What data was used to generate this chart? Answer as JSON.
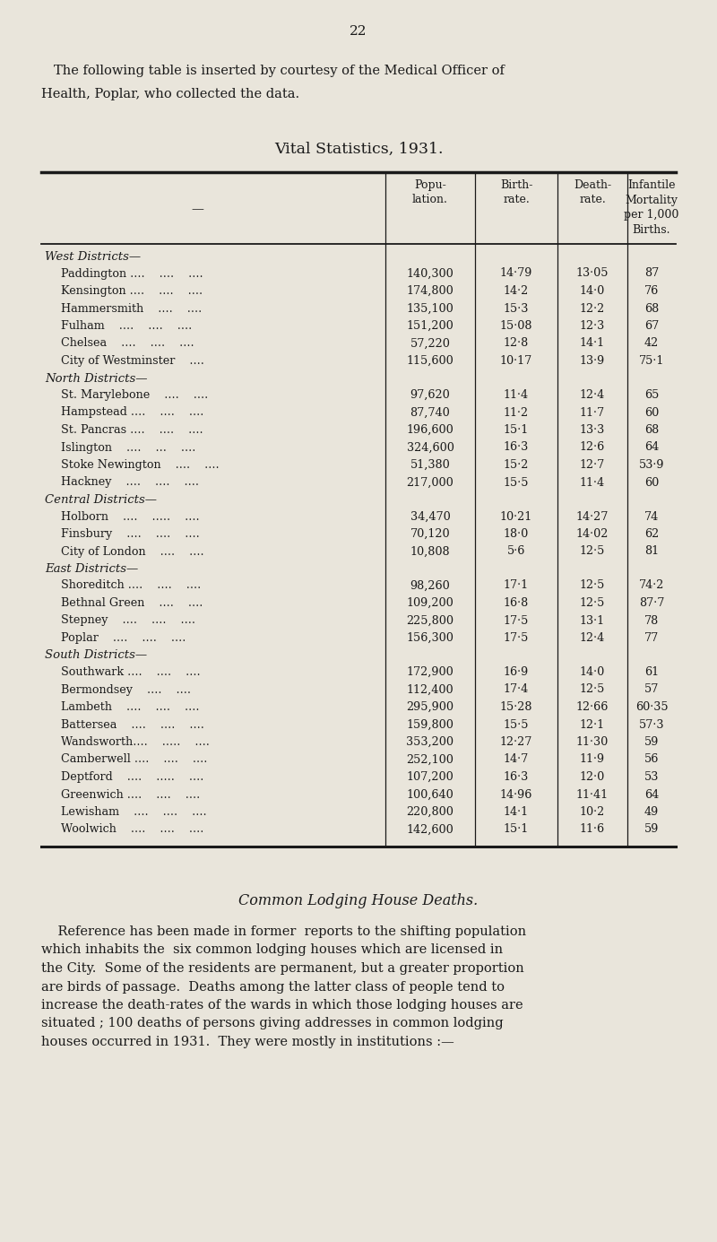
{
  "page_number": "22",
  "intro_line1": "The following table is inserted by courtesy of the Medical Officer of",
  "intro_line2": "Health, Poplar, who collected the data.",
  "table_title": "Vital Statistics, 1931.",
  "bg_color": "#e9e5db",
  "text_color": "#1a1a1a",
  "line_color": "#1a1a1a",
  "sections": [
    {
      "section_name": "West Districts—",
      "rows": [
        [
          "Paddington ....    ....    ....",
          "140,300",
          "14·79",
          "13·05",
          "87"
        ],
        [
          "Kensington ....    ....    ....",
          "174,800",
          "14·2",
          "14·0",
          "76"
        ],
        [
          "Hammersmith    ....    ....",
          "135,100",
          "15·3",
          "12·2",
          "68"
        ],
        [
          "Fulham    ....    ....    ....",
          "151,200",
          "15·08",
          "12·3",
          "67"
        ],
        [
          "Chelsea    ....    ....    ....",
          "57,220",
          "12·8",
          "14·1",
          "42"
        ],
        [
          "City of Westminster    ....",
          "115,600",
          "10·17",
          "13·9",
          "75·1"
        ]
      ]
    },
    {
      "section_name": "North Districts—",
      "rows": [
        [
          "St. Marylebone    ....    ....",
          "97,620",
          "11·4",
          "12·4",
          "65"
        ],
        [
          "Hampstead ....    ....    ....",
          "87,740",
          "11·2",
          "11·7",
          "60"
        ],
        [
          "St. Pancras ....    ....    ....",
          "196,600",
          "15·1",
          "13·3",
          "68"
        ],
        [
          "Islington    ....    ...    ....",
          "324,600",
          "16·3",
          "12·6",
          "64"
        ],
        [
          "Stoke Newington    ....    ....",
          "51,380",
          "15·2",
          "12·7",
          "53·9"
        ],
        [
          "Hackney    ....    ....    ....",
          "217,000",
          "15·5",
          "11·4",
          "60"
        ]
      ]
    },
    {
      "section_name": "Central Districts—",
      "rows": [
        [
          "Holborn    ....    .....    ....",
          "34,470",
          "10·21",
          "14·27",
          "74"
        ],
        [
          "Finsbury    ....    ....    ....",
          "70,120",
          "18·0",
          "14·02",
          "62"
        ],
        [
          "City of London    ....    ....",
          "10,808",
          "5·6",
          "12·5",
          "81"
        ]
      ]
    },
    {
      "section_name": "East Districts—",
      "rows": [
        [
          "Shoreditch ....    ....    ....",
          "98,260",
          "17·1",
          "12·5",
          "74·2"
        ],
        [
          "Bethnal Green    ....    ....",
          "109,200",
          "16·8",
          "12·5",
          "87·7"
        ],
        [
          "Stepney    ....    ....    ....",
          "225,800",
          "17·5",
          "13·1",
          "78"
        ],
        [
          "Poplar    ....    ....    ....",
          "156,300",
          "17·5",
          "12·4",
          "77"
        ]
      ]
    },
    {
      "section_name": "South Districts—",
      "rows": [
        [
          "Southwark ....    ....    ....",
          "172,900",
          "16·9",
          "14·0",
          "61"
        ],
        [
          "Bermondsey    ....    ....",
          "112,400",
          "17·4",
          "12·5",
          "57"
        ],
        [
          "Lambeth    ....    ....    ....",
          "295,900",
          "15·28",
          "12·66",
          "60·35"
        ],
        [
          "Battersea    ....    ....    ....",
          "159,800",
          "15·5",
          "12·1",
          "57·3"
        ],
        [
          "Wandsworth....    .....    ....",
          "353,200",
          "12·27",
          "11·30",
          "59"
        ],
        [
          "Camberwell ....    ....    ....",
          "252,100",
          "14·7",
          "11·9",
          "56"
        ],
        [
          "Deptford    ....    .....    ....",
          "107,200",
          "16·3",
          "12·0",
          "53"
        ],
        [
          "Greenwich ....    ....    ....",
          "100,640",
          "14·96",
          "11·41",
          "64"
        ],
        [
          "Lewisham    ....    ....    ....",
          "220,800",
          "14·1",
          "10·2",
          "49"
        ],
        [
          "Woolwich    ....    ....    ....",
          "142,600",
          "15·1",
          "11·6",
          "59"
        ]
      ]
    }
  ],
  "footer_title": "Common Lodging House Deaths.",
  "footer_lines": [
    "    Reference has been made in former  reports to the shifting population",
    "which inhabits the  six common lodging houses which are licensed in",
    "the City.  Some of the residents are permanent, but a greater proportion",
    "are birds of passage.  Deaths among the latter class of people tend to",
    "increase the death-rates of the wards in which those lodging houses are",
    "situated ; 100 deaths of persons giving addresses in common lodging",
    "houses occurred in 1931.  They were mostly in institutions :—"
  ]
}
